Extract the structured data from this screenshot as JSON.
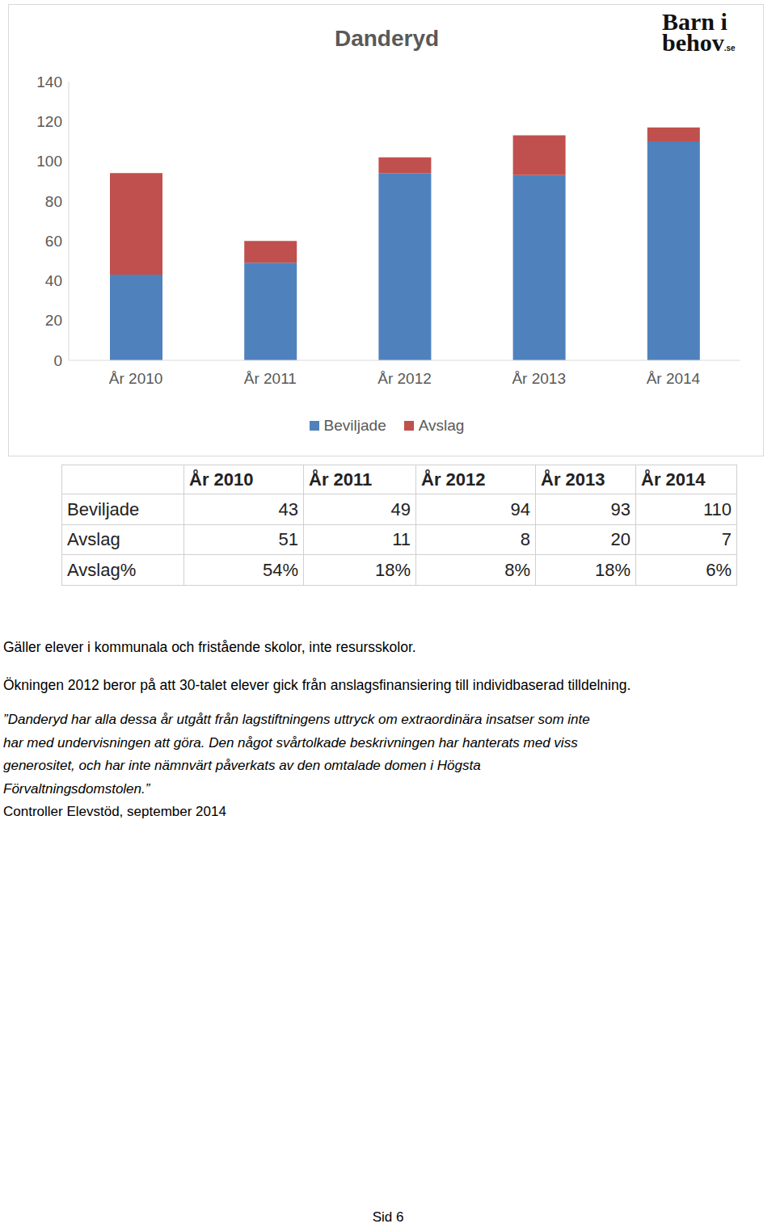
{
  "chart_data": {
    "type": "bar",
    "title": "Danderyd",
    "categories": [
      "År 2010",
      "År 2011",
      "År 2012",
      "År 2013",
      "År 2014"
    ],
    "series": [
      {
        "name": "Beviljade",
        "color": "#4f81bd",
        "values": [
          43,
          49,
          94,
          93,
          110
        ]
      },
      {
        "name": "Avslag",
        "color": "#c0504d",
        "values": [
          51,
          11,
          8,
          20,
          7
        ]
      }
    ],
    "stacked": true,
    "ylim": [
      0,
      140
    ],
    "yticks": [
      0,
      20,
      40,
      60,
      80,
      100,
      120,
      140
    ],
    "grid": false,
    "legend": "bottom"
  },
  "logo": [
    "Barn i",
    "behov",
    ".se"
  ],
  "table": {
    "header": [
      "År 2010",
      "År 2011",
      "År 2012",
      "År 2013",
      "År 2014"
    ],
    "rows": [
      [
        "Beviljade",
        43,
        49,
        94,
        93,
        110
      ],
      [
        "Avslag",
        51,
        11,
        8,
        20,
        7
      ],
      [
        "Avslag%",
        "54%",
        "18%",
        "8%",
        "18%",
        "6%"
      ]
    ]
  },
  "notes": [
    "Gäller elever i kommunala och fristående skolor, inte resursskolor.",
    "Ökningen 2012 beror på att 30-talet elever gick från anslagsfinansiering till individbaserad tilldelning."
  ],
  "quote": [
    "”Danderyd har alla dessa år utgått från lagstiftningens uttryck om extraordinära insatser som inte",
    "har med undervisningen att göra. Den något svårtolkade beskrivningen har hanterats med viss",
    "generositet, och har inte nämnvärt påverkats av den omtalade domen i Högsta",
    "Förvaltningsdomstolen.”"
  ],
  "source": "Controller Elevstöd, september 2014",
  "footer": "Sid 6"
}
